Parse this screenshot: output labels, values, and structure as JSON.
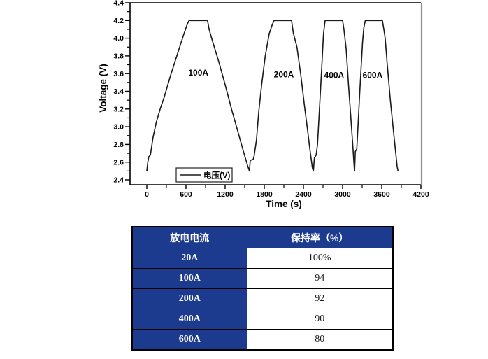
{
  "colors": {
    "navy": "#1c3a8e",
    "curve": "#1a1a1a",
    "frame": "#000000",
    "frame_right": "#8f8f8f",
    "text": "#000000"
  },
  "chart_data": [
    {
      "type": "line",
      "title": "",
      "xlabel": "Time (s)",
      "ylabel": "Voltage (V)",
      "xlim": [
        -280,
        4210
      ],
      "ylim": [
        2.35,
        4.4
      ],
      "x_ticks": [
        0,
        600,
        1200,
        1800,
        2400,
        3000,
        3600,
        4200
      ],
      "y_ticks": [
        2.4,
        2.6,
        2.8,
        3.0,
        3.2,
        3.4,
        3.6,
        3.8,
        4.0,
        4.2,
        4.4
      ],
      "grid": false,
      "legend": {
        "position": "bottom-left",
        "entries": [
          "电压(V)"
        ]
      },
      "annotations": [
        {
          "text": "100A",
          "x": 790,
          "y": 3.61
        },
        {
          "text": "200A",
          "x": 2100,
          "y": 3.59
        },
        {
          "text": "400A",
          "x": 2870,
          "y": 3.58
        },
        {
          "text": "600A",
          "x": 3460,
          "y": 3.58
        }
      ],
      "series": [
        {
          "name": "电压(V)",
          "color": "#1a1a1a",
          "points": [
            [
              0,
              2.5
            ],
            [
              15,
              2.6
            ],
            [
              30,
              2.66
            ],
            [
              55,
              2.68
            ],
            [
              95,
              2.88
            ],
            [
              145,
              3.05
            ],
            [
              205,
              3.2
            ],
            [
              265,
              3.33
            ],
            [
              360,
              3.57
            ],
            [
              460,
              3.8
            ],
            [
              565,
              4.04
            ],
            [
              620,
              4.16
            ],
            [
              648,
              4.2
            ],
            [
              930,
              4.2
            ],
            [
              955,
              4.1
            ],
            [
              1005,
              3.97
            ],
            [
              1105,
              3.73
            ],
            [
              1205,
              3.46
            ],
            [
              1305,
              3.18
            ],
            [
              1405,
              2.92
            ],
            [
              1485,
              2.71
            ],
            [
              1545,
              2.56
            ],
            [
              1572,
              2.5
            ],
            [
              1585,
              2.62
            ],
            [
              1630,
              2.63
            ],
            [
              1645,
              2.67
            ],
            [
              1680,
              2.85
            ],
            [
              1715,
              3.17
            ],
            [
              1760,
              3.48
            ],
            [
              1815,
              3.8
            ],
            [
              1875,
              4.05
            ],
            [
              1925,
              4.16
            ],
            [
              1950,
              4.2
            ],
            [
              2218,
              4.2
            ],
            [
              2245,
              4.06
            ],
            [
              2300,
              3.9
            ],
            [
              2360,
              3.58
            ],
            [
              2412,
              3.26
            ],
            [
              2465,
              2.95
            ],
            [
              2498,
              2.75
            ],
            [
              2538,
              2.53
            ],
            [
              2552,
              2.5
            ],
            [
              2568,
              2.65
            ],
            [
              2595,
              2.68
            ],
            [
              2615,
              2.8
            ],
            [
              2638,
              3.1
            ],
            [
              2660,
              3.4
            ],
            [
              2684,
              3.72
            ],
            [
              2708,
              4.05
            ],
            [
              2732,
              4.2
            ],
            [
              3000,
              4.2
            ],
            [
              3020,
              4.1
            ],
            [
              3055,
              3.88
            ],
            [
              3090,
              3.48
            ],
            [
              3128,
              3.09
            ],
            [
              3152,
              2.83
            ],
            [
              3172,
              2.6
            ],
            [
              3183,
              2.5
            ],
            [
              3195,
              2.72
            ],
            [
              3218,
              2.75
            ],
            [
              3238,
              3.03
            ],
            [
              3258,
              3.32
            ],
            [
              3282,
              3.64
            ],
            [
              3306,
              3.96
            ],
            [
              3326,
              4.12
            ],
            [
              3348,
              4.2
            ],
            [
              3610,
              4.2
            ],
            [
              3632,
              4.1
            ],
            [
              3652,
              4.0
            ],
            [
              3680,
              3.74
            ],
            [
              3732,
              3.3
            ],
            [
              3785,
              2.91
            ],
            [
              3836,
              2.55
            ],
            [
              3850,
              2.5
            ]
          ]
        }
      ]
    },
    {
      "type": "table",
      "columns": [
        "放电电流",
        "保持率（%）"
      ],
      "rows": [
        [
          "20A",
          "100%"
        ],
        [
          "100A",
          "94"
        ],
        [
          "200A",
          "92"
        ],
        [
          "400A",
          "90"
        ],
        [
          "600A",
          "80"
        ]
      ]
    }
  ]
}
